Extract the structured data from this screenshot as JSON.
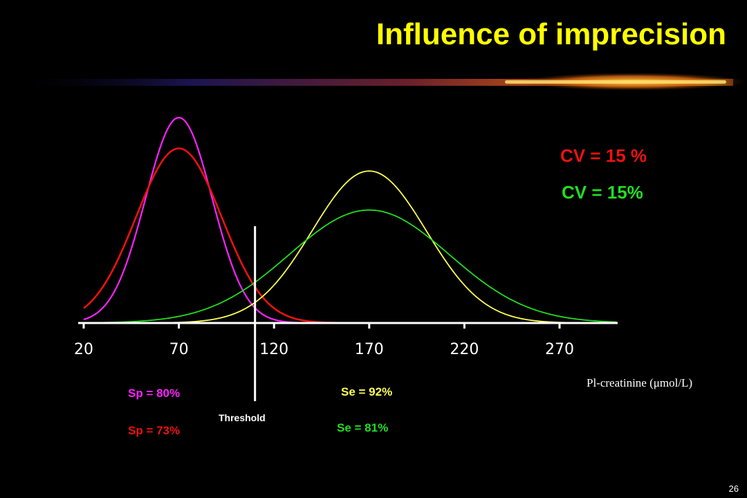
{
  "slide": {
    "title": "Influence of imprecision",
    "page_number": "26",
    "colors": {
      "background": "#000000",
      "title": "#FFFF00",
      "magenta": "#FF22FF",
      "red": "#EE1111",
      "yellow": "#FFFF55",
      "green": "#22DD22",
      "white": "#FFFFFF"
    }
  },
  "chart_data": {
    "type": "line",
    "xlabel": "Pl-creatinine (μmol/L)",
    "x_ticks": [
      20,
      70,
      120,
      170,
      220,
      270
    ],
    "xlim": [
      20,
      300
    ],
    "ylim": [
      0,
      1
    ],
    "threshold": {
      "label": "Threshold",
      "x": 110
    },
    "series": [
      {
        "color": "#FF22FF",
        "distribution": "normal",
        "mean": 70,
        "sd": 17.5,
        "peak": 1.0
      },
      {
        "color": "#EE1111",
        "distribution": "normal",
        "mean": 70,
        "sd": 22.5,
        "peak": 0.85
      },
      {
        "color": "#FFFF55",
        "distribution": "normal",
        "mean": 170,
        "sd": 30,
        "peak": 0.74
      },
      {
        "color": "#22DD22",
        "distribution": "normal",
        "mean": 170,
        "sd": 42,
        "peak": 0.55
      }
    ],
    "annotations": {
      "cv_red": "CV = 15 %",
      "cv_green": "CV = 15%",
      "sp_magenta": "Sp = 80%",
      "sp_red": "Sp = 73%",
      "se_yellow": "Se = 92%",
      "se_green": "Se = 81%"
    }
  }
}
